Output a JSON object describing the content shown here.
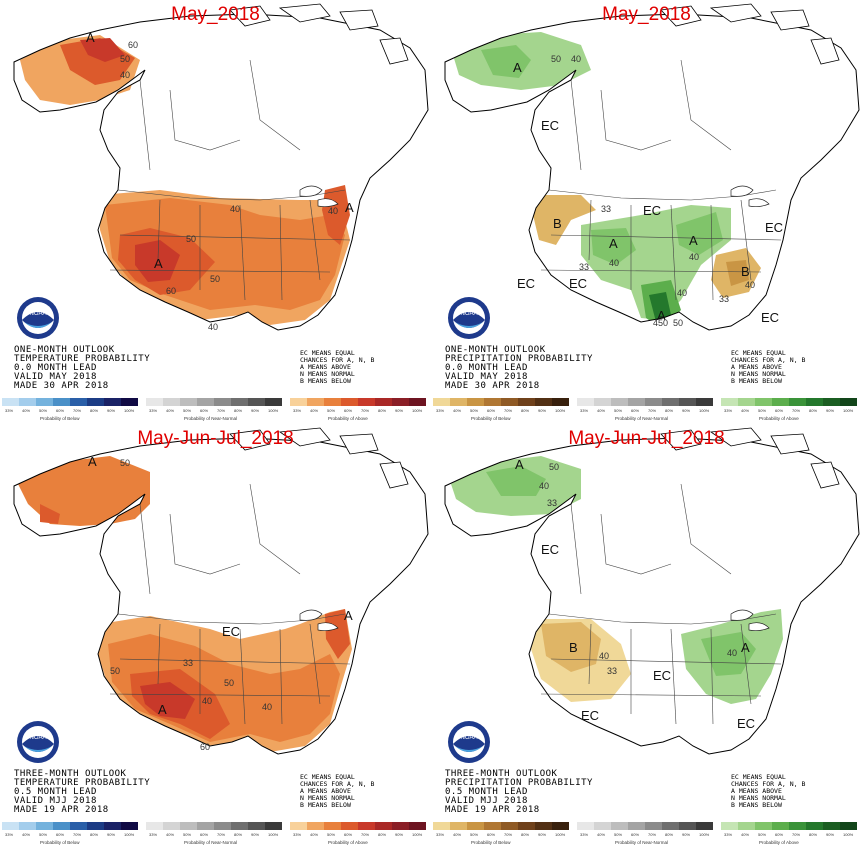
{
  "panels": [
    {
      "title": "May_2018",
      "variable": "temperature",
      "info_lines": [
        "ONE-MONTH OUTLOOK",
        "TEMPERATURE PROBABILITY",
        "0.0 MONTH LEAD",
        "VALID MAY 2018",
        "MADE 30 APR 2018"
      ],
      "map_labels": [
        "A",
        "A",
        "A",
        "60",
        "50",
        "40",
        "40",
        "50",
        "40",
        "60",
        "40",
        "50"
      ]
    },
    {
      "title": "May_2018",
      "variable": "precipitation",
      "info_lines": [
        "ONE-MONTH OUTLOOK",
        "PRECIPITATION PROBABILITY",
        "0.0 MONTH LEAD",
        "VALID MAY 2018",
        "MADE 30 APR 2018"
      ],
      "map_labels": [
        "A",
        "50",
        "40",
        "EC",
        "B",
        "33",
        "EC",
        "A",
        "40",
        "A",
        "40",
        "33",
        "EC",
        "B",
        "40",
        "33",
        "EC",
        "A",
        "40",
        "50",
        "450",
        "EC",
        "EC"
      ]
    },
    {
      "title": "May-Jun-Jul_2018",
      "variable": "temperature",
      "info_lines": [
        "THREE-MONTH OUTLOOK",
        "TEMPERATURE PROBABILITY",
        "0.5 MONTH LEAD",
        "VALID MJJ 2018",
        "MADE 19 APR 2018"
      ],
      "map_labels": [
        "A",
        "50",
        "EC",
        "33",
        "A",
        "50",
        "40",
        "50",
        "A",
        "60",
        "40"
      ]
    },
    {
      "title": "May-Jun-Jul_2018",
      "variable": "precipitation",
      "info_lines": [
        "THREE-MONTH OUTLOOK",
        "PRECIPITATION PROBABILITY",
        "0.5 MONTH LEAD",
        "VALID MJJ 2018",
        "MADE 19 APR 2018"
      ],
      "map_labels": [
        "A",
        "50",
        "40",
        "33",
        "EC",
        "B",
        "40",
        "33",
        "EC",
        "EC",
        "A",
        "40",
        "EC"
      ]
    }
  ],
  "legend_lines": [
    "EC MEANS EQUAL",
    "CHANCES FOR A, N, B",
    "A MEANS ABOVE",
    "N MEANS NORMAL",
    "B MEANS BELOW"
  ],
  "colorbar_ticks": [
    "33%",
    "40%",
    "50%",
    "60%",
    "70%",
    "80%",
    "90%",
    "100%"
  ],
  "temp_captions": [
    "Probability of Below",
    "Probability of Near-Normal",
    "Probability of Above"
  ],
  "precip_captions": [
    "Probability of Below",
    "Probability of Near-Normal",
    "Probability of Above"
  ],
  "colors": {
    "temp_below": [
      "#c9e2f4",
      "#a3cdec",
      "#74b2dd",
      "#4a90c8",
      "#2a5fa8",
      "#1c3c85",
      "#1a2266",
      "#100a44"
    ],
    "near_normal": [
      "#e7e7e7",
      "#d4d4d4",
      "#bdbdbd",
      "#a4a4a4",
      "#8b8b8b",
      "#6f6f6f",
      "#555555",
      "#3a3a3a"
    ],
    "temp_above": [
      "#f8d19a",
      "#f0a560",
      "#e8803c",
      "#dc5a2c",
      "#c8392a",
      "#a92826",
      "#8a1e26",
      "#6d1421"
    ],
    "precip_below": [
      "#f0d898",
      "#dfb566",
      "#c99544",
      "#b07733",
      "#8f5a25",
      "#6f411b",
      "#523014",
      "#38200d"
    ],
    "precip_above": [
      "#c5e5b4",
      "#a4d58e",
      "#80c46a",
      "#5cae4c",
      "#3a9339",
      "#24782c",
      "#1b5e22",
      "#12451a"
    ],
    "title_red": "#e00000"
  },
  "logo_text": "NOAA"
}
